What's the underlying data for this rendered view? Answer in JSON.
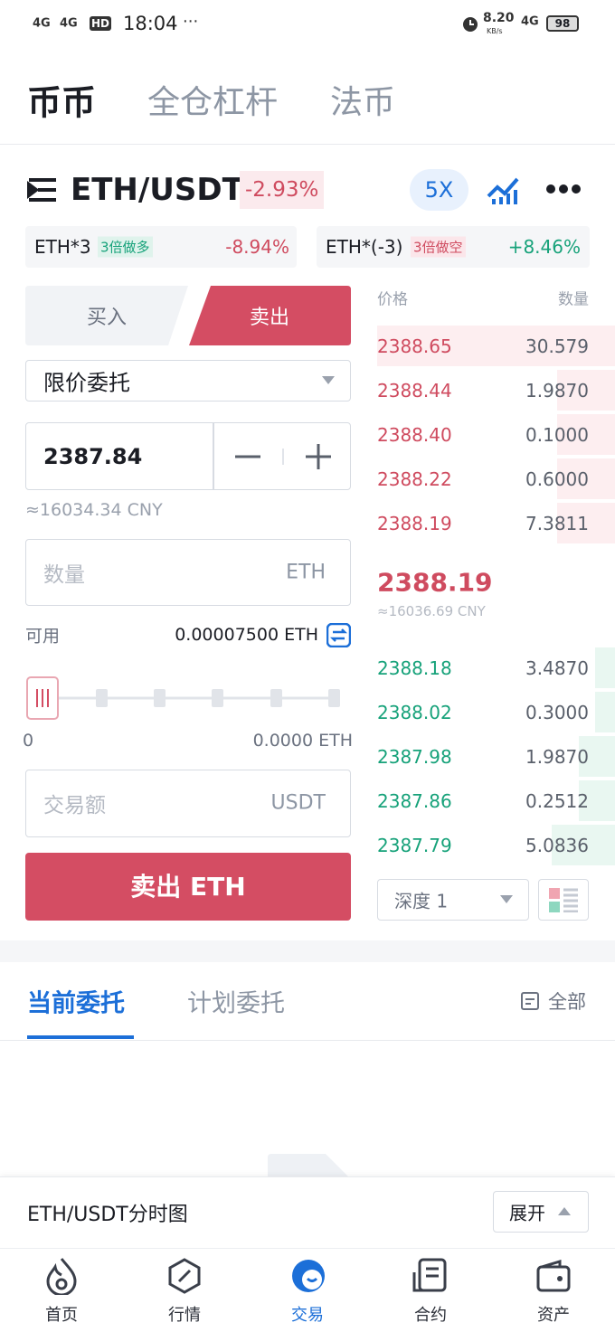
{
  "status_bar": {
    "network": [
      "4G",
      "4G",
      "HD"
    ],
    "time": "18:04",
    "speed": "8.20",
    "speed_unit": "KB/s",
    "network_right": "4G",
    "battery": "98"
  },
  "top_tabs": [
    "币币",
    "全仓杠杆",
    "法币"
  ],
  "pair": {
    "name": "ETH/USDT",
    "change": "-2.93%",
    "leverage": "5X"
  },
  "leveraged_tokens": [
    {
      "name": "ETH*3",
      "tag": "3倍做多",
      "change": "-8.94%"
    },
    {
      "name": "ETH*(-3)",
      "tag": "3倍做空",
      "change": "+8.46%"
    }
  ],
  "order_form": {
    "buy": "买入",
    "sell": "卖出",
    "order_type": "限价委托",
    "price": "2387.84",
    "price_cny": "≈16034.34 CNY",
    "amount_placeholder": "数量",
    "amount_unit": "ETH",
    "available_label": "可用",
    "available": "0.00007500 ETH",
    "slider_min": "0",
    "slider_max": "0.0000 ETH",
    "total_placeholder": "交易额",
    "total_unit": "USDT",
    "submit": "卖出 ETH"
  },
  "order_book": {
    "price_header": "价格",
    "qty_header": "数量",
    "asks": [
      [
        "2388.65",
        "30.579"
      ],
      [
        "2388.44",
        "1.9870"
      ],
      [
        "2388.40",
        "0.1000"
      ],
      [
        "2388.22",
        "0.6000"
      ],
      [
        "2388.19",
        "7.3811"
      ]
    ],
    "last_price": "2388.19",
    "last_price_cny": "≈16036.69 CNY",
    "bids": [
      [
        "2388.18",
        "3.4870"
      ],
      [
        "2388.02",
        "0.3000"
      ],
      [
        "2387.98",
        "1.9870"
      ],
      [
        "2387.86",
        "0.2512"
      ],
      [
        "2387.79",
        "5.0836"
      ]
    ],
    "depth": "深度 1"
  },
  "orders": {
    "tabs": [
      "当前委托",
      "计划委托"
    ],
    "all": "全部"
  },
  "chart_bar": {
    "title": "ETH/USDT分时图",
    "expand": "展开"
  },
  "nav": [
    "首页",
    "行情",
    "交易",
    "合约",
    "资产"
  ]
}
